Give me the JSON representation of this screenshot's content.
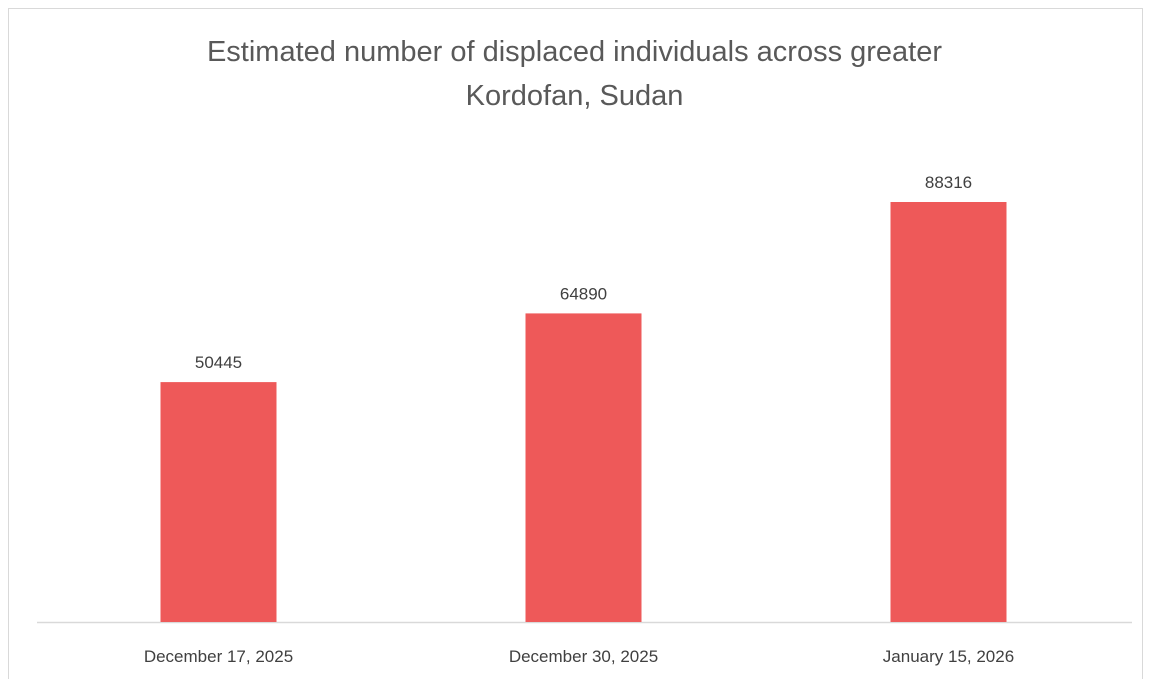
{
  "chart_data": {
    "type": "bar",
    "title_lines": [
      "Estimated number of displaced individuals across greater",
      "Kordofan, Sudan"
    ],
    "categories": [
      "December 17, 2025",
      "December 30, 2025",
      "January 15, 2026"
    ],
    "values": [
      50445,
      64890,
      88316
    ],
    "data_labels": [
      "50445",
      "64890",
      "88316"
    ],
    "xlabel": "",
    "ylabel": "",
    "ylim": [
      0,
      100000
    ],
    "grid": false,
    "legend": "none",
    "bar_color": "#ee5959",
    "axis_color": "#d9d9d9",
    "text_color": "#404040",
    "title_color": "#595959"
  }
}
